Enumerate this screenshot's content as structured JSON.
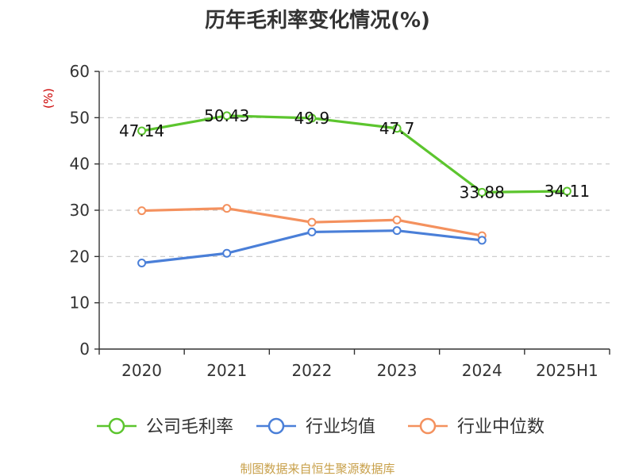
{
  "chart_data": {
    "type": "line",
    "title": "历年毛利率变化情况(%)",
    "unit_label": "(%)",
    "categories": [
      "2020",
      "2021",
      "2022",
      "2023",
      "2024",
      "2025H1"
    ],
    "ylim": [
      0,
      60
    ],
    "yticks": [
      0,
      10,
      20,
      30,
      40,
      50,
      60
    ],
    "grid": true,
    "legend_position": "bottom",
    "series": [
      {
        "name": "公司毛利率",
        "color": "#5cc52e",
        "values": [
          47.14,
          50.43,
          49.9,
          47.7,
          33.88,
          34.11
        ],
        "labels": [
          "47.14",
          "50.43",
          "49.9",
          "47.7",
          "33.88",
          "34.11"
        ]
      },
      {
        "name": "行业均值",
        "color": "#4a7fd8",
        "values": [
          18.6,
          20.7,
          25.3,
          25.6,
          23.5,
          null
        ]
      },
      {
        "name": "行业中位数",
        "color": "#f4915e",
        "values": [
          29.9,
          30.4,
          27.4,
          27.9,
          24.5,
          null
        ]
      }
    ]
  },
  "footer": {
    "source": "制图数据来自恒生聚源数据库"
  }
}
